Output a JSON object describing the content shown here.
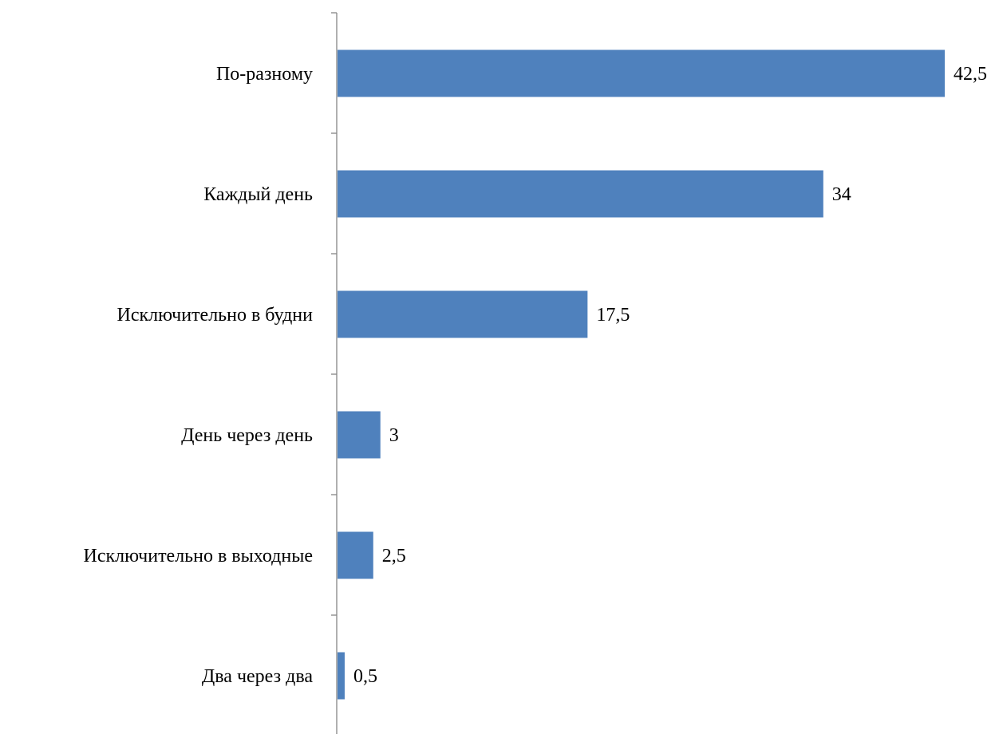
{
  "chart_data": {
    "type": "bar",
    "orientation": "horizontal",
    "title": "",
    "xlabel": "",
    "ylabel": "",
    "categories": [
      "По-разному",
      "Каждый день",
      "Исключительно в будни",
      "День через день",
      "Исключительно в выходные",
      "Два через два"
    ],
    "values": [
      42.5,
      34,
      17.5,
      3,
      2.5,
      0.5
    ],
    "value_labels": [
      "42,5",
      "34",
      "17,5",
      "3",
      "2,5",
      "0,5"
    ],
    "xlim": [
      0,
      42.5
    ],
    "bar_color": "#4f81bd",
    "axis_color": "#868686",
    "grid": false,
    "legend": "none"
  }
}
